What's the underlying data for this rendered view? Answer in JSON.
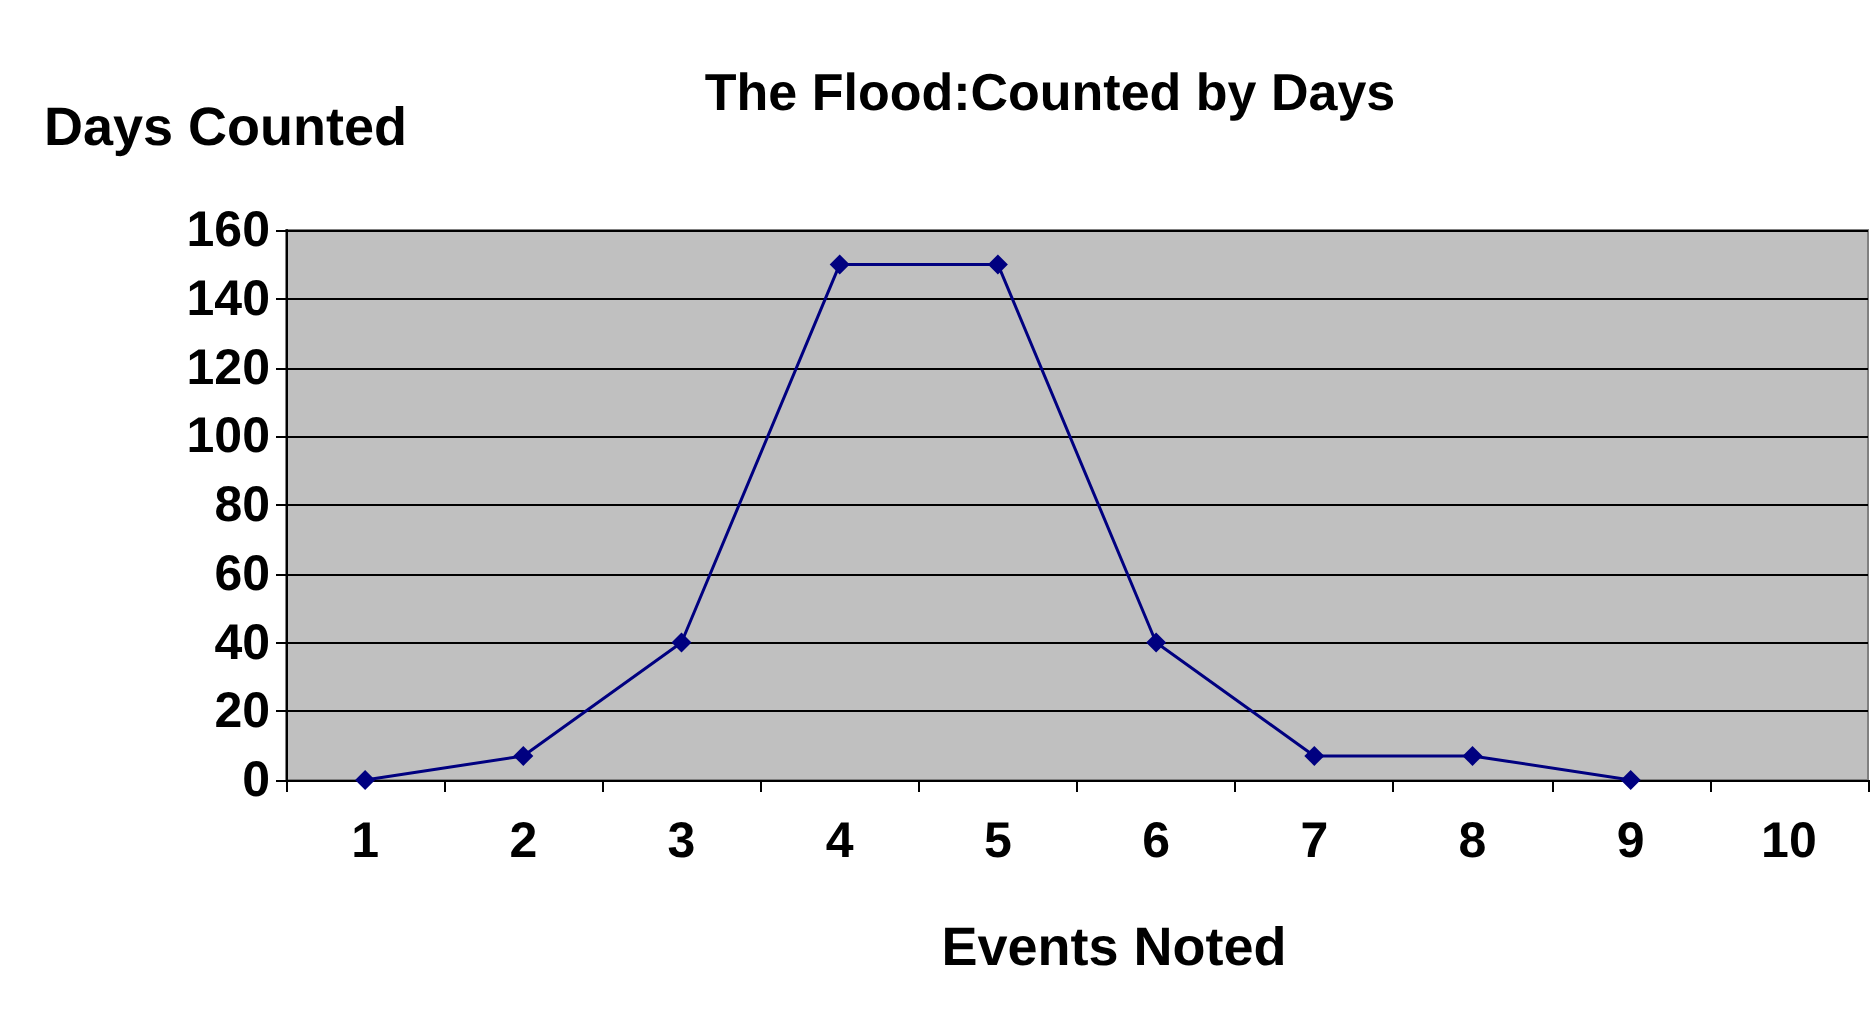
{
  "chart_data": {
    "type": "line",
    "title": "The Flood:Counted by Days",
    "xlabel": "Events Noted",
    "ylabel": "Days Counted",
    "categories": [
      "1",
      "2",
      "3",
      "4",
      "5",
      "6",
      "7",
      "8",
      "9",
      "10"
    ],
    "series": [
      {
        "color": "#000080",
        "values": [
          0,
          7,
          40,
          150,
          150,
          40,
          7,
          7,
          0,
          null
        ]
      }
    ],
    "ylim": [
      0,
      160
    ],
    "yticks": [
      0,
      20,
      40,
      60,
      80,
      100,
      120,
      140,
      160
    ],
    "grid": "y",
    "marker": "diamond",
    "line_style": "solid"
  }
}
